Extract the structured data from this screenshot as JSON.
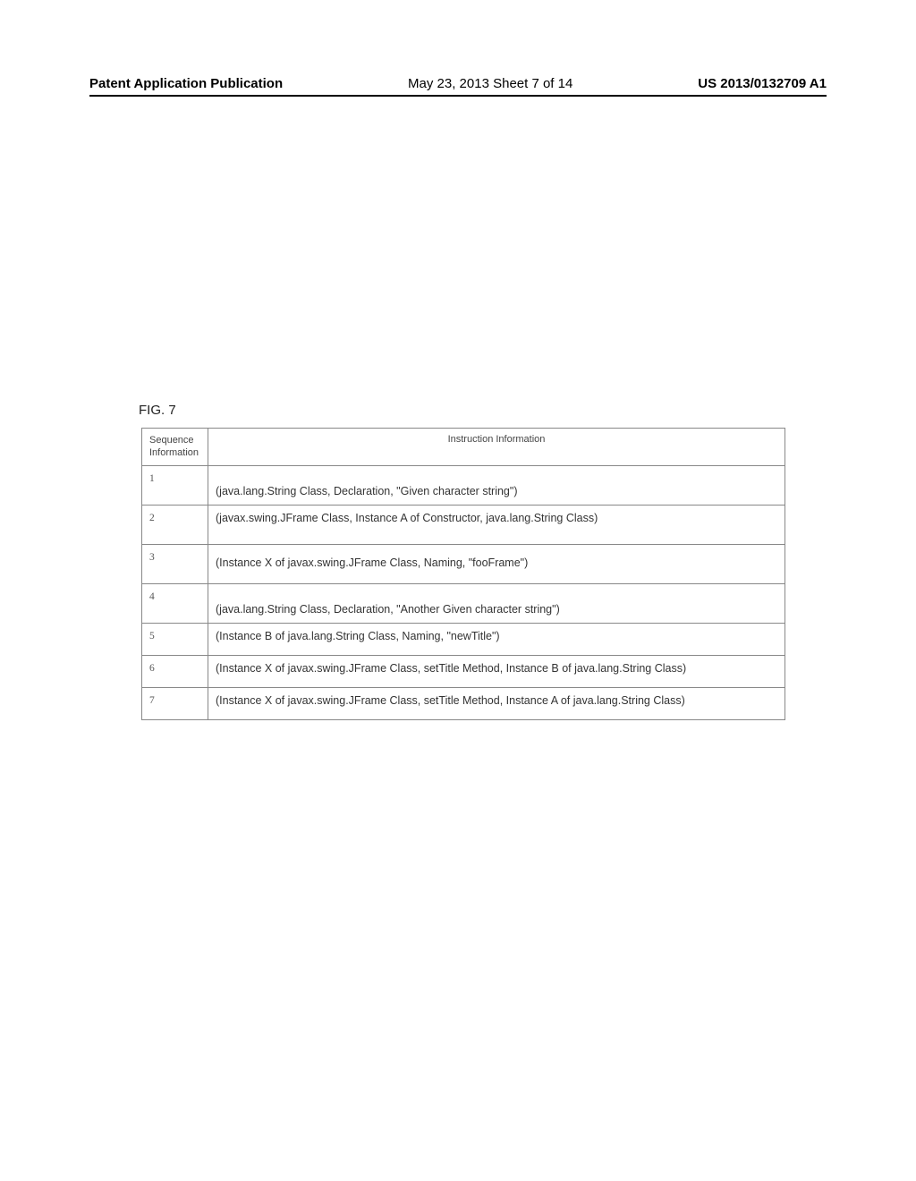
{
  "header": {
    "left": "Patent Application Publication",
    "center": "May 23, 2013  Sheet 7 of 14",
    "right": "US 2013/0132709 A1"
  },
  "figure": {
    "label": "FIG. 7"
  },
  "table": {
    "columns": {
      "sequence": "Sequence Information",
      "instruction": "Instruction Information"
    },
    "rows": [
      {
        "seq": "1",
        "instr": "(java.lang.String Class, Declaration, \"Given character string\")"
      },
      {
        "seq": "2",
        "instr": "(javax.swing.JFrame Class, Instance A of Constructor, java.lang.String Class)"
      },
      {
        "seq": "3",
        "instr": "(Instance X of javax.swing.JFrame Class, Naming, \"fooFrame\")"
      },
      {
        "seq": "4",
        "instr": "(java.lang.String Class, Declaration, \"Another Given character string\")"
      },
      {
        "seq": "5",
        "instr": "(Instance B of java.lang.String Class, Naming, \"newTitle\")"
      },
      {
        "seq": "6",
        "instr": "(Instance X of javax.swing.JFrame Class, setTitle Method, Instance B of java.lang.String Class)"
      },
      {
        "seq": "7",
        "instr": "(Instance X of javax.swing.JFrame Class, setTitle Method, Instance A of java.lang.String Class)"
      }
    ]
  }
}
